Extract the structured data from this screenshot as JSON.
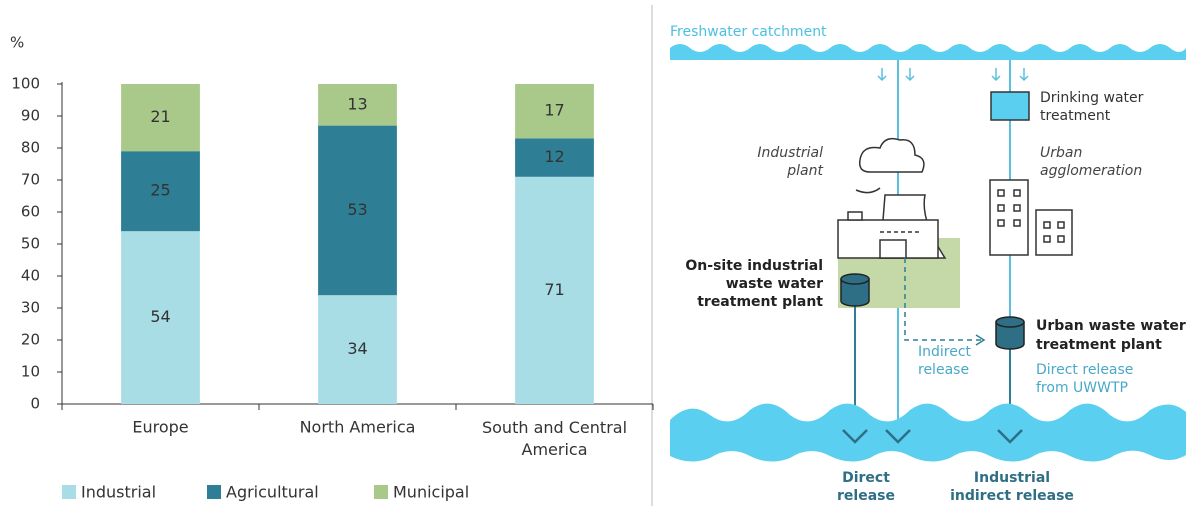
{
  "chart_data": {
    "type": "stacked_bar",
    "y_label": "%",
    "categories": [
      "Europe",
      "North America",
      "South and Central America"
    ],
    "series": [
      {
        "name": "Industrial",
        "color": "#a8dde6",
        "values": [
          54,
          34,
          71
        ]
      },
      {
        "name": "Agricultural",
        "color": "#2e7f96",
        "values": [
          25,
          53,
          12
        ]
      },
      {
        "name": "Municipal",
        "color": "#a9c98a",
        "values": [
          21,
          13,
          17
        ]
      }
    ],
    "ylim": [
      0,
      100
    ],
    "yticks": [
      0,
      10,
      20,
      30,
      40,
      50,
      60,
      70,
      80,
      90,
      100
    ],
    "grid": false,
    "legend": "bottom"
  },
  "diagram": {
    "catchment": "Freshwater catchment",
    "drinking": [
      "Drinking water",
      "treatment"
    ],
    "industrial_plant": [
      "Industrial",
      "plant"
    ],
    "urban_agglomeration": [
      "Urban",
      "agglomeration"
    ],
    "onsite_plant": [
      "On-site industrial",
      "waste water",
      "treatment plant"
    ],
    "indirect": [
      "Indirect",
      "release"
    ],
    "uwwtp": [
      "Urban waste water",
      "treatment plant"
    ],
    "direct_uwwtp": [
      "Direct release",
      "from UWWTP"
    ],
    "direct": [
      "Direct",
      "release"
    ],
    "industrial_indirect": [
      "Industrial",
      "indirect release"
    ]
  }
}
